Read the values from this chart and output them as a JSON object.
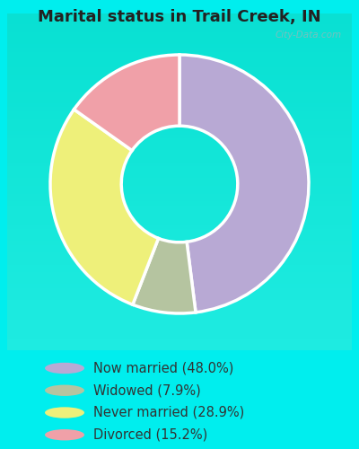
{
  "title": "Marital status in Trail Creek, IN",
  "categories": [
    "Now married (48.0%)",
    "Widowed (7.9%)",
    "Never married (28.9%)",
    "Divorced (15.2%)"
  ],
  "values": [
    48.0,
    7.9,
    28.9,
    15.2
  ],
  "colors": [
    "#b8a9d4",
    "#b5c4a0",
    "#eef07a",
    "#f0a0a8"
  ],
  "bg_color": "#00eeee",
  "chart_bg_top": "#e8f5ee",
  "chart_bg_bottom": "#d8ede4",
  "donut_width": 0.55,
  "start_angle": 90,
  "figsize": [
    4.0,
    5.0
  ],
  "dpi": 100,
  "title_fontsize": 13,
  "legend_fontsize": 10.5,
  "watermark_text": "City-Data.com",
  "title_color": "#222222",
  "legend_text_color": "#333333"
}
